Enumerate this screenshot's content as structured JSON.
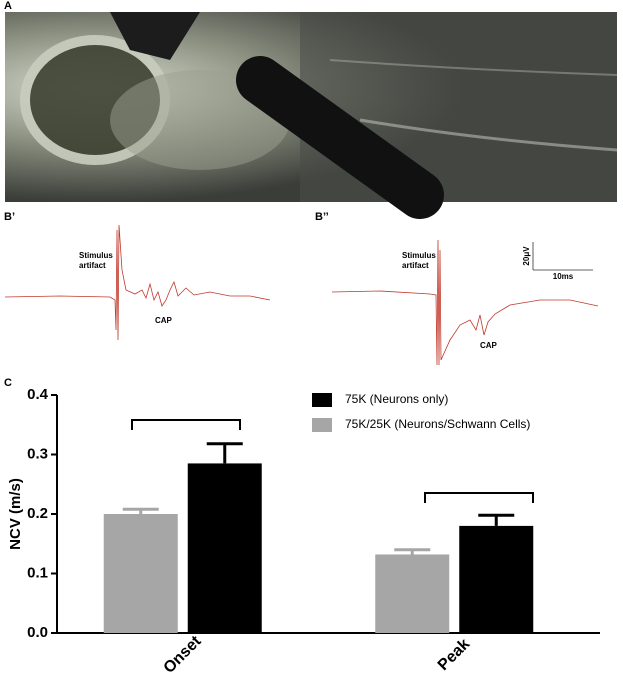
{
  "figure": {
    "panel_a": "A",
    "panel_b1": "B’",
    "panel_b2": "B’’",
    "panel_c": "C",
    "b1_artifact": [
      "Stimulus",
      "artifact"
    ],
    "b1_cap": "CAP",
    "b2_artifact": [
      "Stimulus",
      "artifact"
    ],
    "b2_cap": "CAP",
    "scale_v": "20μV",
    "scale_t": "10ms"
  },
  "chart_data": {
    "type": "bar",
    "y_label": "NCV (m/s)",
    "categories": [
      "Onset",
      "Peak"
    ],
    "series": [
      {
        "name": "75K (Neurons only)",
        "color": "#000000",
        "values": [
          0.285,
          0.18
        ],
        "errors": [
          0.033,
          0.018
        ]
      },
      {
        "name": "75K/25K (Neurons/Schwann Cells)",
        "color": "#a6a6a6",
        "values": [
          0.2,
          0.132
        ],
        "errors": [
          0.008,
          0.008
        ]
      }
    ],
    "ylim": [
      0,
      0.4
    ],
    "yticks": [
      {
        "value": 0,
        "label": "0.0"
      },
      0.1,
      0.2,
      0.3,
      0.4
    ]
  }
}
